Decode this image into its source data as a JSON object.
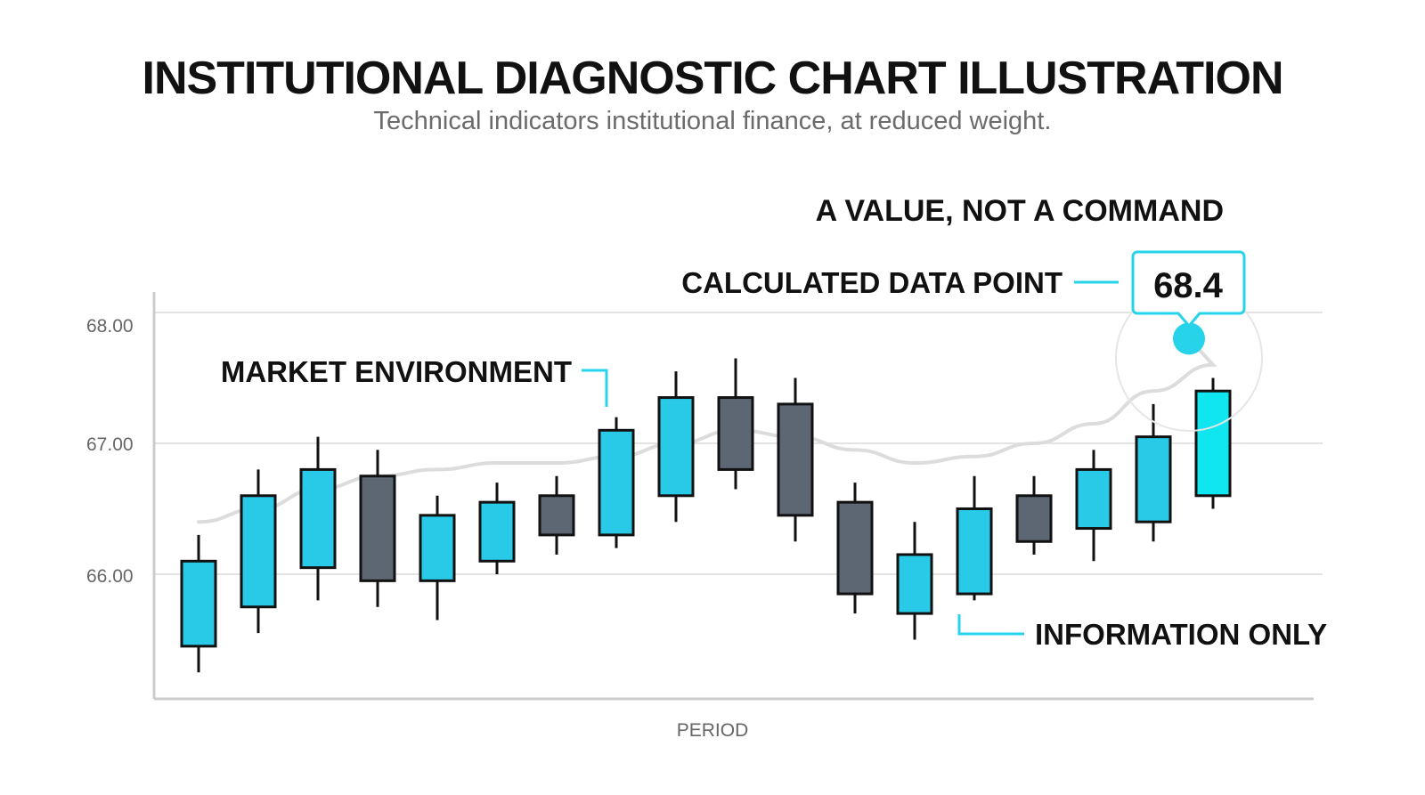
{
  "header": {
    "title": "INSTITUTIONAL DIAGNOSTIC CHART ILLUSTRATION",
    "subtitle": "Technical indicators institutional finance, at reduced weight."
  },
  "annotations": {
    "value_not_command": "A VALUE, NOT A COMMAND",
    "calculated_data_point": "CALCULATED DATA POINT",
    "callout_value": "68.4",
    "market_environment": "MARKET ENVIRONMENT",
    "information_only": "INFORMATION ONLY"
  },
  "colors": {
    "bull": "#29c9e8",
    "bull_highlight": "#10e6ef",
    "bear": "#5d6673",
    "accent": "#27d3e8",
    "ma_line": "#dcdcdc",
    "grid": "#e3e3e3",
    "axis": "#cccccc"
  },
  "chart_data": {
    "type": "candlestick",
    "xlabel": "PERIOD",
    "ylabel": "",
    "y_ticks": [
      "66.00",
      "67.00",
      "68.00"
    ],
    "grid": true,
    "candles": [
      {
        "open": 65.45,
        "high": 66.3,
        "low": 65.25,
        "close": 66.1
      },
      {
        "open": 65.75,
        "high": 66.8,
        "low": 65.55,
        "close": 66.6
      },
      {
        "open": 66.05,
        "high": 67.05,
        "low": 65.8,
        "close": 66.8
      },
      {
        "open": 66.75,
        "high": 66.95,
        "low": 65.75,
        "close": 65.95
      },
      {
        "open": 65.95,
        "high": 66.6,
        "low": 65.65,
        "close": 66.45
      },
      {
        "open": 66.1,
        "high": 66.7,
        "low": 66.0,
        "close": 66.55
      },
      {
        "open": 66.6,
        "high": 66.75,
        "low": 66.15,
        "close": 66.3
      },
      {
        "open": 66.3,
        "high": 67.2,
        "low": 66.2,
        "close": 67.1
      },
      {
        "open": 66.6,
        "high": 67.55,
        "low": 66.4,
        "close": 67.35
      },
      {
        "open": 67.35,
        "high": 67.65,
        "low": 66.65,
        "close": 66.8
      },
      {
        "open": 67.3,
        "high": 67.5,
        "low": 66.25,
        "close": 66.45
      },
      {
        "open": 66.55,
        "high": 66.7,
        "low": 65.7,
        "close": 65.85
      },
      {
        "open": 65.7,
        "high": 66.4,
        "low": 65.5,
        "close": 66.15
      },
      {
        "open": 65.85,
        "high": 66.75,
        "low": 65.8,
        "close": 66.5
      },
      {
        "open": 66.6,
        "high": 66.75,
        "low": 66.15,
        "close": 66.25
      },
      {
        "open": 66.35,
        "high": 66.95,
        "low": 66.1,
        "close": 66.8
      },
      {
        "open": 66.4,
        "high": 67.3,
        "low": 66.25,
        "close": 67.05
      },
      {
        "open": 66.6,
        "high": 67.5,
        "low": 66.5,
        "close": 67.4
      }
    ],
    "moving_average": [
      66.4,
      66.5,
      66.65,
      66.75,
      66.8,
      66.85,
      66.85,
      66.9,
      67.0,
      67.1,
      67.05,
      66.95,
      66.85,
      66.9,
      67.0,
      67.15,
      67.4,
      67.6
    ],
    "calculated_point": {
      "value": 68.4,
      "y": 67.8
    }
  }
}
